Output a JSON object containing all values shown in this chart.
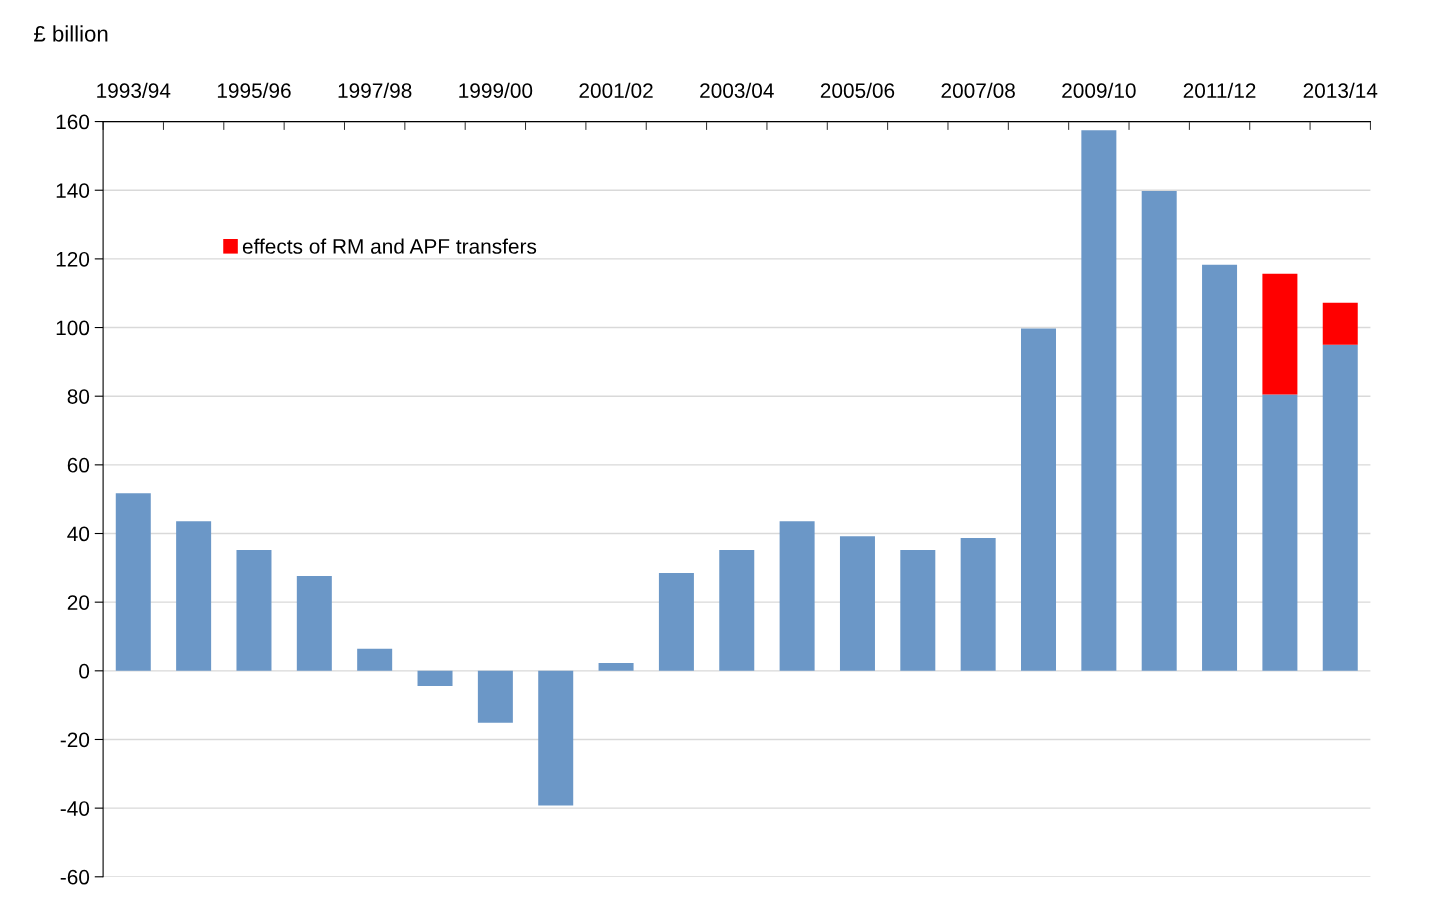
{
  "chart_data": {
    "type": "bar",
    "ylabel": "£ billion",
    "categories": [
      "1993/94",
      null,
      "1995/96",
      null,
      "1997/98",
      null,
      "1999/00",
      null,
      "2001/02",
      null,
      "2003/04",
      null,
      "2005/06",
      null,
      "2007/08",
      null,
      "2009/10",
      null,
      "2011/12",
      null,
      "2013/14"
    ],
    "series": [
      {
        "color": "#6b97c7",
        "values": [
          51.7,
          43.6,
          35.2,
          27.6,
          6.4,
          -4.4,
          -15.1,
          -39.2,
          2.3,
          28.5,
          35.2,
          43.6,
          39.2,
          35.2,
          38.7,
          99.7,
          157.5,
          139.8,
          118.3,
          80.5,
          95.0
        ]
      },
      {
        "name": "effects of RM and APF transfers",
        "color": "#ff0000",
        "values": [
          null,
          null,
          null,
          null,
          null,
          null,
          null,
          null,
          null,
          null,
          null,
          null,
          null,
          null,
          null,
          null,
          null,
          null,
          null,
          35.2,
          12.2
        ]
      }
    ],
    "stacked": true,
    "ylim": [
      -60,
      160
    ],
    "yticks": [
      -60,
      -40,
      -20,
      0,
      20,
      40,
      60,
      80,
      100,
      120,
      140,
      160
    ],
    "grid": "y",
    "legend": "top left"
  }
}
